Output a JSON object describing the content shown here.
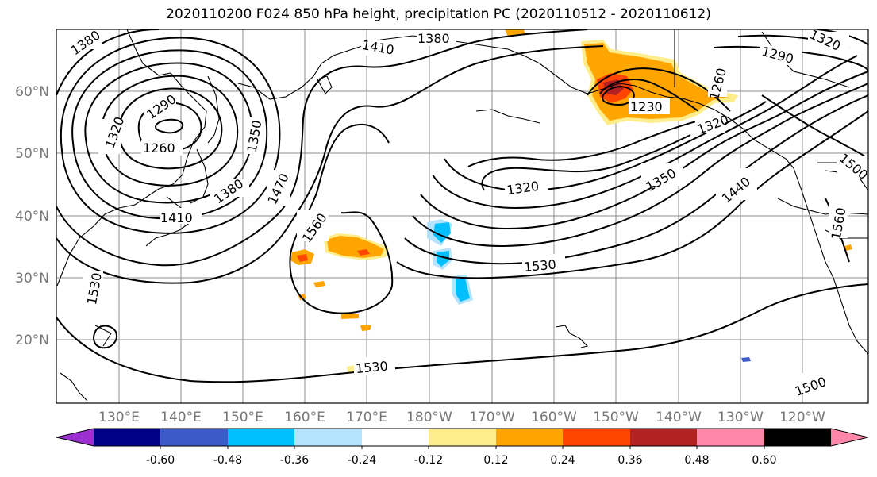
{
  "title": "2020110200 F024 850 hPa height, precipitation PC (2020110512 - 2020110612)",
  "map": {
    "projection": "plate-carree",
    "lon_labels": [
      "130°E",
      "140°E",
      "150°E",
      "160°E",
      "170°E",
      "180°W",
      "170°W",
      "160°W",
      "150°W",
      "140°W",
      "130°W",
      "120°W"
    ],
    "lat_labels": [
      "60°N",
      "50°N",
      "40°N",
      "30°N",
      "20°N"
    ],
    "contour_labels": [
      "1380",
      "1410",
      "1380",
      "1290",
      "1320",
      "1260",
      "1350",
      "1380",
      "1410",
      "1470",
      "1560",
      "1530",
      "1530",
      "1320",
      "1350",
      "1530",
      "1230",
      "1290",
      "1320",
      "1440",
      "1500",
      "1560",
      "1500",
      "1260",
      "1320"
    ],
    "colors": {
      "contour": "#000000",
      "grid": "#8c8c8c",
      "coast": "#000000"
    }
  },
  "colorbar": {
    "ticks": [
      "-0.60",
      "-0.48",
      "-0.36",
      "-0.24",
      "-0.12",
      "0.12",
      "0.24",
      "0.36",
      "0.48",
      "0.60"
    ],
    "colors": [
      "#9b30d0",
      "#000087",
      "#3c5ac8",
      "#00bfff",
      "#b3e3ff",
      "#ffffff",
      "#ffec8b",
      "#ffa500",
      "#ff4500",
      "#b22222",
      "#ff88aa"
    ]
  }
}
